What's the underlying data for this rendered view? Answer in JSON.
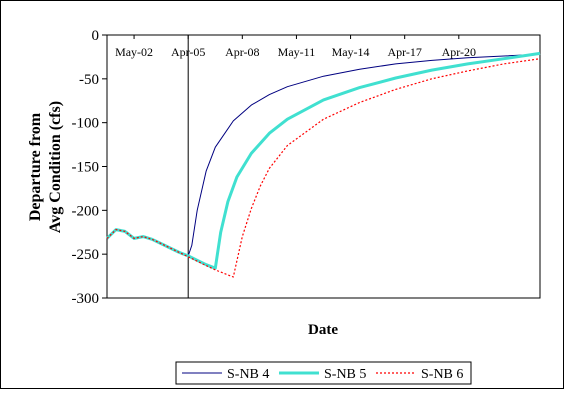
{
  "chart_data": {
    "type": "line",
    "title": "",
    "xlabel": "Date",
    "ylabel": [
      "Departure from",
      "Avg Condition (cfs)"
    ],
    "ylim": [
      -300,
      0
    ],
    "yticks": [
      0,
      -50,
      -100,
      -150,
      -200,
      -250,
      -300
    ],
    "xticks": [
      "May-02",
      "Apr-05",
      "Apr-08",
      "May-11",
      "May-14",
      "Apr-17",
      "Apr-20"
    ],
    "xlim": [
      0,
      24
    ],
    "grid": false,
    "legend_position": "bottom",
    "reference_line_x": 4.5,
    "series": [
      {
        "name": "S-NB 4",
        "color": "#000080",
        "style": "solid-thin",
        "points": [
          [
            0,
            -232
          ],
          [
            0.5,
            -222
          ],
          [
            1,
            -224
          ],
          [
            1.5,
            -232
          ],
          [
            2,
            -230
          ],
          [
            2.5,
            -233
          ],
          [
            3,
            -238
          ],
          [
            3.5,
            -243
          ],
          [
            4,
            -248
          ],
          [
            4.3,
            -250
          ],
          [
            4.5,
            -252
          ],
          [
            4.7,
            -240
          ],
          [
            5,
            -200
          ],
          [
            5.5,
            -155
          ],
          [
            6,
            -128
          ],
          [
            7,
            -98
          ],
          [
            8,
            -80
          ],
          [
            9,
            -68
          ],
          [
            10,
            -59
          ],
          [
            12,
            -47
          ],
          [
            14,
            -39
          ],
          [
            16,
            -33
          ],
          [
            18,
            -29
          ],
          [
            20,
            -26
          ],
          [
            22,
            -24
          ],
          [
            24,
            -22
          ]
        ]
      },
      {
        "name": "S-NB 5",
        "color": "#40E0D0",
        "style": "solid-thick",
        "points": [
          [
            0,
            -232
          ],
          [
            0.5,
            -222
          ],
          [
            1,
            -224
          ],
          [
            1.5,
            -232
          ],
          [
            2,
            -230
          ],
          [
            2.5,
            -233
          ],
          [
            3,
            -238
          ],
          [
            3.5,
            -243
          ],
          [
            4,
            -248
          ],
          [
            4.5,
            -252
          ],
          [
            5,
            -257
          ],
          [
            5.5,
            -262
          ],
          [
            6,
            -266
          ],
          [
            6.3,
            -225
          ],
          [
            6.7,
            -190
          ],
          [
            7.2,
            -162
          ],
          [
            8,
            -135
          ],
          [
            9,
            -112
          ],
          [
            10,
            -96
          ],
          [
            12,
            -74
          ],
          [
            14,
            -60
          ],
          [
            16,
            -49
          ],
          [
            18,
            -40
          ],
          [
            20,
            -33
          ],
          [
            22,
            -27
          ],
          [
            24,
            -21
          ]
        ]
      },
      {
        "name": "S-NB 6",
        "color": "#FF0000",
        "style": "dotted",
        "points": [
          [
            0,
            -232
          ],
          [
            0.5,
            -222
          ],
          [
            1,
            -224
          ],
          [
            1.5,
            -232
          ],
          [
            2,
            -230
          ],
          [
            2.5,
            -233
          ],
          [
            3,
            -238
          ],
          [
            3.5,
            -243
          ],
          [
            4,
            -248
          ],
          [
            4.5,
            -253
          ],
          [
            5,
            -258
          ],
          [
            5.5,
            -263
          ],
          [
            6,
            -268
          ],
          [
            6.5,
            -272
          ],
          [
            7,
            -276
          ],
          [
            7.5,
            -230
          ],
          [
            8,
            -198
          ],
          [
            8.5,
            -172
          ],
          [
            9,
            -152
          ],
          [
            10,
            -126
          ],
          [
            12,
            -96
          ],
          [
            14,
            -77
          ],
          [
            16,
            -62
          ],
          [
            18,
            -50
          ],
          [
            20,
            -41
          ],
          [
            22,
            -33
          ],
          [
            24,
            -27
          ]
        ]
      }
    ]
  }
}
